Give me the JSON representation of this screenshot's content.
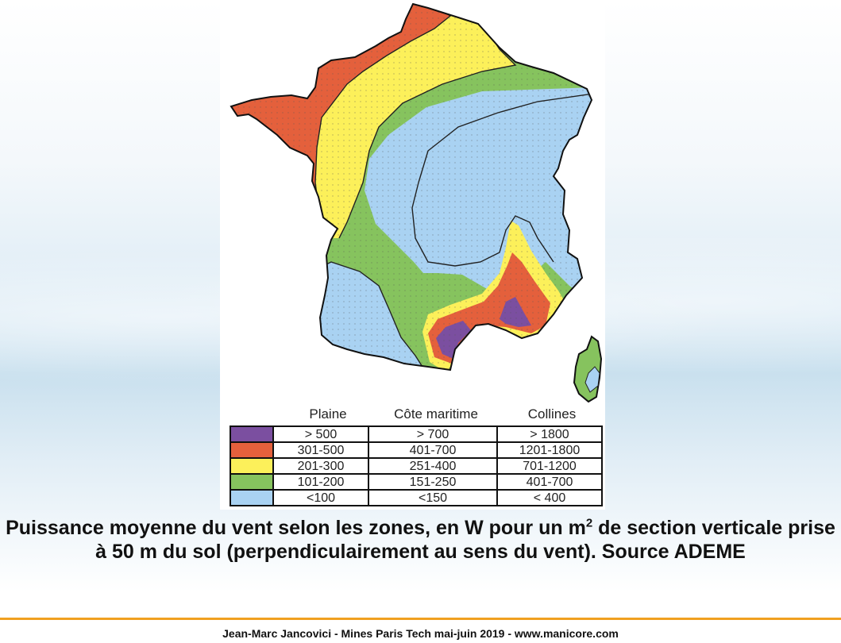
{
  "colors": {
    "purple": "#7b4fa0",
    "red": "#e4603c",
    "yellow": "#fcf05a",
    "green": "#86c35e",
    "blue": "#a9d2f2",
    "accent_rule": "#f0a020"
  },
  "legend": {
    "headers": [
      "Plaine",
      "Côte maritime",
      "Collines"
    ],
    "rows": [
      {
        "swatch": "purple",
        "plaine": "> 500",
        "cote": "> 700",
        "collines": "> 1800"
      },
      {
        "swatch": "red",
        "plaine": "301-500",
        "cote": "401-700",
        "collines": "1201-1800"
      },
      {
        "swatch": "yellow",
        "plaine": "201-300",
        "cote": "251-400",
        "collines": "701-1200"
      },
      {
        "swatch": "green",
        "plaine": "101-200",
        "cote": "151-250",
        "collines": "401-700"
      },
      {
        "swatch": "blue",
        "plaine": "<100",
        "cote": "<150",
        "collines": "< 400"
      }
    ]
  },
  "caption": {
    "part1": "Puissance moyenne du vent selon les zones, en W pour un m",
    "sup": "2",
    "part2": " de section verticale prise à 50 m du sol (perpendiculairement au sens du vent). Source ADEME"
  },
  "footer": "Jean-Marc Jancovici - Mines Paris Tech mai-juin 2019 - www.manicore.com"
}
